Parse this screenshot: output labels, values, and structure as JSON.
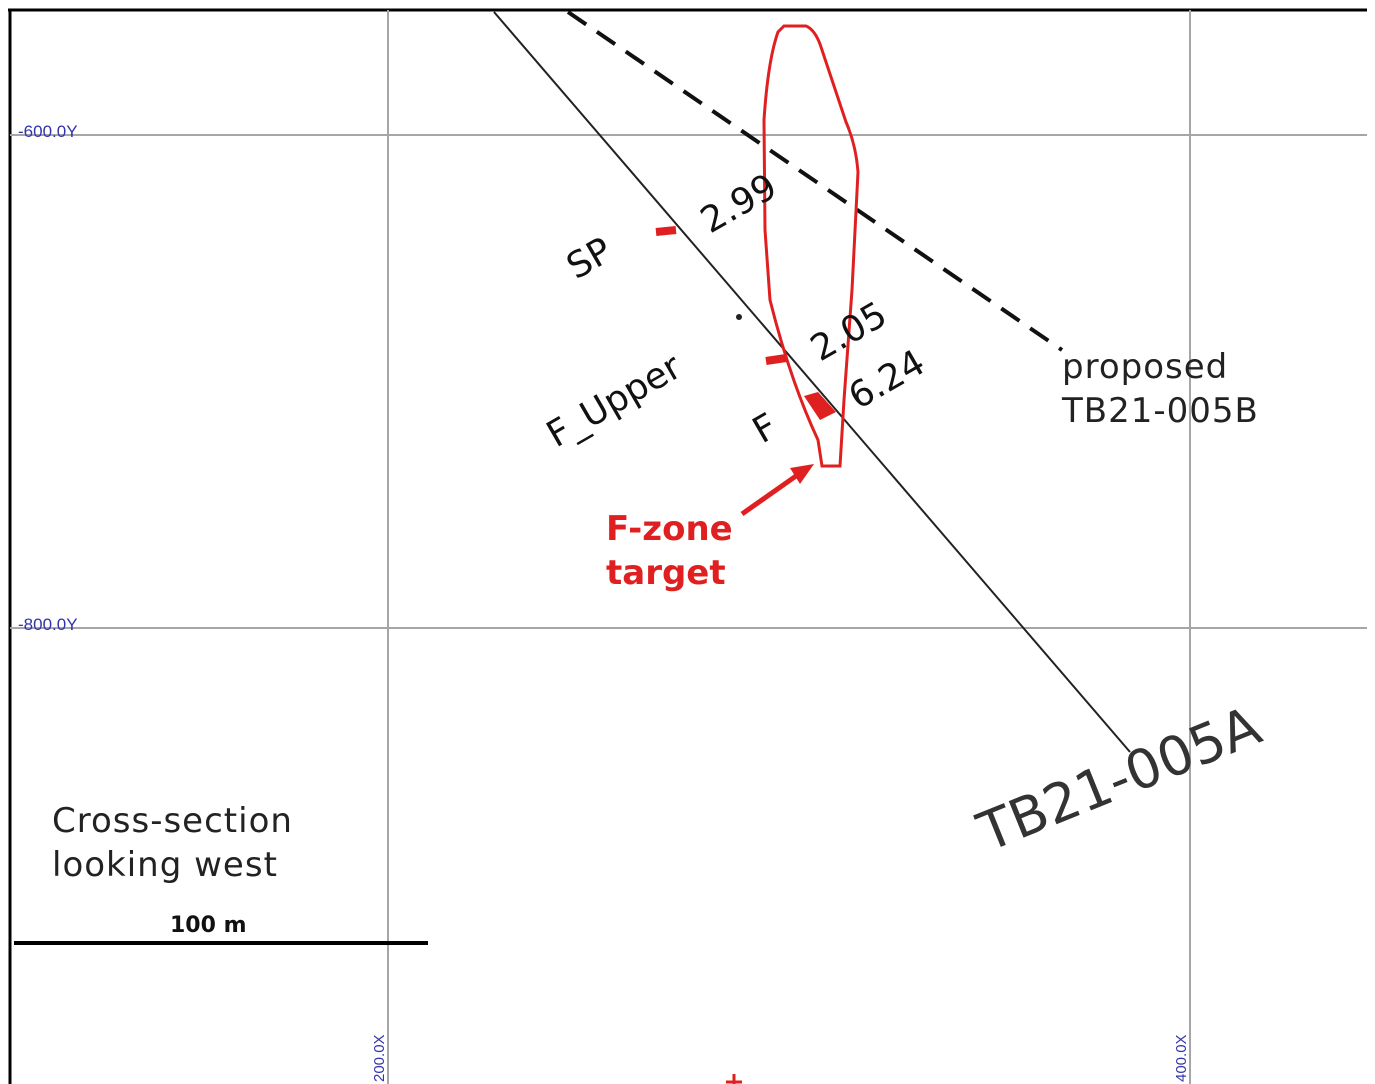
{
  "grid": {
    "y_labels": [
      "-600.0Y",
      "-800.0Y"
    ],
    "x_labels": [
      "200.0X",
      "400.0X"
    ]
  },
  "drillhole": {
    "name": "TB21-005A",
    "intercepts": [
      {
        "zone": "SP",
        "value": "2.99"
      },
      {
        "zone": "F_Upper",
        "value": "2.05"
      },
      {
        "zone": "F",
        "value": "6.24"
      }
    ]
  },
  "proposed_hole": {
    "line1": "proposed",
    "line2": "TB21-005B"
  },
  "target": {
    "line1": "F-zone",
    "line2": "target"
  },
  "caption": {
    "line1": "Cross-section",
    "line2": "looking west"
  },
  "scale_bar": {
    "label": "100 m"
  },
  "colors": {
    "target": "#e02020",
    "grid": "#a6a6a6",
    "coord_labels": "#3333aa",
    "drillhole": "#222222"
  }
}
